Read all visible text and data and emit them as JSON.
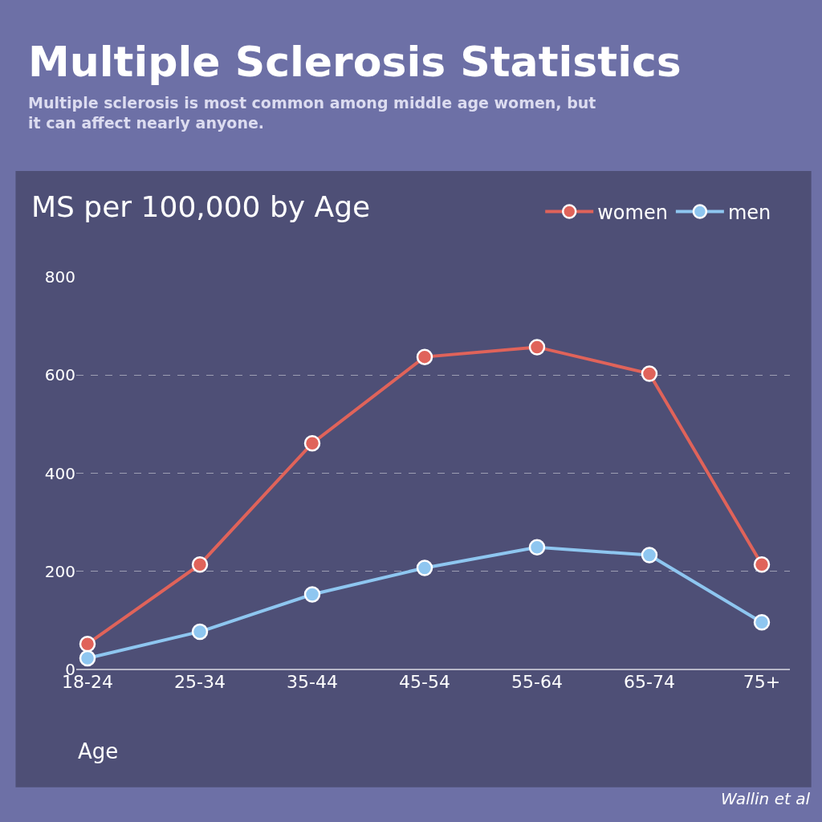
{
  "chart_data": {
    "type": "line",
    "title": "Multiple Sclerosis Statistics",
    "subtitle": "Multiple sclerosis is most common among middle age women, but it can affect nearly anyone.",
    "xlabel": "Age",
    "annotations": [
      "MS per 100,000 by Age",
      "Wallin et al"
    ],
    "categories": [
      "18-24",
      "25-34",
      "35-44",
      "45-54",
      "55-64",
      "65-74",
      "75+"
    ],
    "series": [
      {
        "name": "women",
        "color": "#e0635a",
        "values": [
          52,
          214,
          461,
          637,
          657,
          603,
          214
        ]
      },
      {
        "name": "men",
        "color": "#8ec6f0",
        "values": [
          23,
          77,
          153,
          207,
          249,
          233,
          96
        ]
      }
    ],
    "ylim": [
      0,
      800
    ],
    "yticks": [
      0,
      200,
      400,
      600,
      800
    ],
    "grid": "y",
    "legend": "top right",
    "marker": "circle",
    "line_style": "solid"
  }
}
